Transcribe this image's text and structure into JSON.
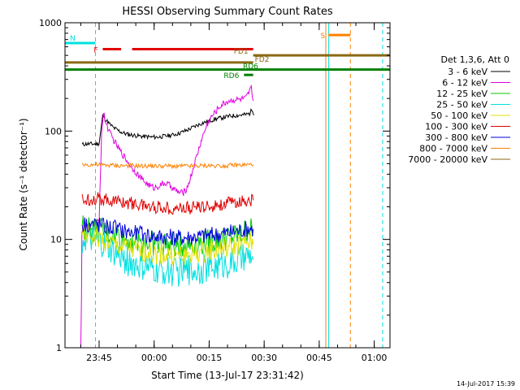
{
  "chart_data": {
    "type": "line",
    "title": "HESSI Observing Summary Count Rates",
    "xlabel": "Start Time (13-Jul-17 23:31:42)",
    "ylabel": "Count Rate (s⁻¹ detector⁻¹)",
    "yscale": "log",
    "ylim": [
      1,
      1000
    ],
    "yticks": [
      {
        "value": 1,
        "label": "1"
      },
      {
        "value": 10,
        "label": "10"
      },
      {
        "value": 100,
        "label": "100"
      },
      {
        "value": 1000,
        "label": "1000"
      }
    ],
    "xlim_minutes": [
      -9.3,
      79.3
    ],
    "xticks": [
      {
        "minute": 0,
        "label": "23:45"
      },
      {
        "minute": 15,
        "label": "00:00"
      },
      {
        "minute": 30,
        "label": "00:15"
      },
      {
        "minute": 45,
        "label": "00:30"
      },
      {
        "minute": 60,
        "label": "00:45"
      },
      {
        "minute": 75,
        "label": "01:00"
      }
    ],
    "legend_title": "Det 1,3,6, Att 0",
    "legend_position": "right",
    "series": [
      {
        "name": "3 - 6 keV",
        "color": "#000000",
        "points": [
          [
            -4.6,
            75
          ],
          [
            -3.8,
            76
          ],
          [
            -3,
            76
          ],
          [
            -2.2,
            76
          ],
          [
            -1.4,
            76
          ],
          [
            -0.6,
            76
          ],
          [
            0,
            77
          ],
          [
            1,
            140
          ],
          [
            2,
            125
          ],
          [
            3,
            115
          ],
          [
            4,
            107
          ],
          [
            5,
            102
          ],
          [
            6,
            98
          ],
          [
            7,
            95
          ],
          [
            8,
            93
          ],
          [
            9,
            92
          ],
          [
            10,
            91
          ],
          [
            11,
            90
          ],
          [
            12,
            89
          ],
          [
            13,
            89
          ],
          [
            14,
            88
          ],
          [
            15,
            88
          ],
          [
            16,
            88
          ],
          [
            17,
            89
          ],
          [
            18,
            90
          ],
          [
            19,
            91
          ],
          [
            20,
            92
          ],
          [
            21,
            94
          ],
          [
            22,
            96
          ],
          [
            23,
            99
          ],
          [
            24,
            102
          ],
          [
            25,
            106
          ],
          [
            26,
            110
          ],
          [
            27,
            114
          ],
          [
            28,
            118
          ],
          [
            29,
            121
          ],
          [
            30,
            124
          ],
          [
            31,
            127
          ],
          [
            32,
            130
          ],
          [
            33,
            132
          ],
          [
            34,
            134
          ],
          [
            35,
            136
          ],
          [
            36,
            138
          ],
          [
            37,
            139
          ],
          [
            38,
            140
          ],
          [
            39,
            141
          ],
          [
            40,
            142
          ],
          [
            41,
            145
          ],
          [
            41.8,
            160
          ],
          [
            42.2,
            140
          ]
        ]
      },
      {
        "name": "6 - 12 keV",
        "color": "#e000e0",
        "points": [
          [
            -5,
            1
          ],
          [
            -4.8,
            3
          ],
          [
            -4.7,
            12
          ],
          [
            -4.5,
            12
          ],
          [
            -4,
            13
          ],
          [
            -3,
            13
          ],
          [
            -2,
            13
          ],
          [
            -1,
            14
          ],
          [
            0,
            15
          ],
          [
            0.7,
            100
          ],
          [
            1.2,
            145
          ],
          [
            2,
            115
          ],
          [
            3,
            95
          ],
          [
            4,
            82
          ],
          [
            5,
            72
          ],
          [
            6,
            64
          ],
          [
            7,
            57
          ],
          [
            8,
            51
          ],
          [
            9,
            46
          ],
          [
            10,
            42
          ],
          [
            11,
            38
          ],
          [
            12,
            35
          ],
          [
            13,
            33
          ],
          [
            14,
            31
          ],
          [
            15,
            30
          ],
          [
            16,
            31
          ],
          [
            17,
            32
          ],
          [
            18,
            33
          ],
          [
            19,
            32
          ],
          [
            20,
            30
          ],
          [
            21,
            28
          ],
          [
            22,
            27
          ],
          [
            23,
            27
          ],
          [
            24,
            30
          ],
          [
            25,
            38
          ],
          [
            26,
            50
          ],
          [
            27,
            65
          ],
          [
            28,
            85
          ],
          [
            29,
            105
          ],
          [
            30,
            125
          ],
          [
            31,
            140
          ],
          [
            32,
            155
          ],
          [
            33,
            170
          ],
          [
            34,
            180
          ],
          [
            35,
            188
          ],
          [
            36,
            192
          ],
          [
            37,
            195
          ],
          [
            38,
            195
          ],
          [
            39,
            198
          ],
          [
            40,
            200
          ],
          [
            41,
            230
          ],
          [
            41.5,
            250
          ],
          [
            42,
            190
          ]
        ]
      },
      {
        "name": "12 - 25 keV",
        "color": "#00cc00",
        "points": [
          [
            -4.6,
            13
          ],
          [
            -3,
            13
          ],
          [
            -1,
            12
          ],
          [
            1,
            12
          ],
          [
            3,
            11
          ],
          [
            5,
            11
          ],
          [
            7,
            10
          ],
          [
            9,
            10
          ],
          [
            11,
            9.5
          ],
          [
            13,
            9.3
          ],
          [
            15,
            9.1
          ],
          [
            17,
            9
          ],
          [
            19,
            8.8
          ],
          [
            21,
            8.7
          ],
          [
            23,
            8.8
          ],
          [
            25,
            9
          ],
          [
            27,
            9.2
          ],
          [
            29,
            9.4
          ],
          [
            31,
            9.7
          ],
          [
            33,
            10
          ],
          [
            35,
            10.3
          ],
          [
            37,
            10.7
          ],
          [
            39,
            11.2
          ],
          [
            41,
            13
          ],
          [
            42,
            11
          ]
        ]
      },
      {
        "name": "25 - 50 keV",
        "color": "#00e0e0",
        "points": [
          [
            -4.6,
            10
          ],
          [
            -3,
            10
          ],
          [
            -1,
            9.5
          ],
          [
            1,
            9
          ],
          [
            3,
            8
          ],
          [
            5,
            7
          ],
          [
            7,
            6.5
          ],
          [
            9,
            6
          ],
          [
            11,
            5.6
          ],
          [
            13,
            5.4
          ],
          [
            15,
            5.2
          ],
          [
            17,
            5.1
          ],
          [
            19,
            5.1
          ],
          [
            21,
            5
          ],
          [
            23,
            5.1
          ],
          [
            25,
            5.2
          ],
          [
            27,
            5.3
          ],
          [
            29,
            5.4
          ],
          [
            31,
            5.6
          ],
          [
            33,
            5.8
          ],
          [
            35,
            6
          ],
          [
            37,
            6.2
          ],
          [
            39,
            6.5
          ],
          [
            41,
            7
          ],
          [
            42,
            6.5
          ]
        ]
      },
      {
        "name": "50 - 100 keV",
        "color": "#e0e000",
        "points": [
          [
            -4.6,
            11
          ],
          [
            -3,
            11
          ],
          [
            -1,
            10.5
          ],
          [
            1,
            10
          ],
          [
            3,
            9.3
          ],
          [
            5,
            8.8
          ],
          [
            7,
            8.4
          ],
          [
            9,
            8.1
          ],
          [
            11,
            7.8
          ],
          [
            13,
            7.6
          ],
          [
            15,
            7.4
          ],
          [
            17,
            7.3
          ],
          [
            19,
            7.2
          ],
          [
            21,
            7.1
          ],
          [
            23,
            7.2
          ],
          [
            25,
            7.3
          ],
          [
            27,
            7.5
          ],
          [
            29,
            7.7
          ],
          [
            31,
            7.9
          ],
          [
            33,
            8.1
          ],
          [
            35,
            8.3
          ],
          [
            37,
            8.6
          ],
          [
            39,
            9
          ],
          [
            41,
            9.5
          ],
          [
            42,
            9
          ]
        ]
      },
      {
        "name": "100 - 300 keV",
        "color": "#e00000",
        "points": [
          [
            -4.6,
            23
          ],
          [
            -3,
            23.5
          ],
          [
            -1,
            24
          ],
          [
            1,
            23.5
          ],
          [
            3,
            23
          ],
          [
            5,
            22.5
          ],
          [
            7,
            22
          ],
          [
            9,
            21.5
          ],
          [
            11,
            21
          ],
          [
            13,
            20.5
          ],
          [
            15,
            20
          ],
          [
            17,
            20
          ],
          [
            19,
            19.5
          ],
          [
            21,
            19.5
          ],
          [
            23,
            19.5
          ],
          [
            25,
            19.5
          ],
          [
            27,
            20
          ],
          [
            29,
            20
          ],
          [
            31,
            20.5
          ],
          [
            33,
            21
          ],
          [
            35,
            21.5
          ],
          [
            37,
            22
          ],
          [
            39,
            22.5
          ],
          [
            41,
            23
          ],
          [
            42,
            23
          ]
        ]
      },
      {
        "name": "300 - 800 keV",
        "color": "#0000e0",
        "points": [
          [
            -4.6,
            14
          ],
          [
            -3,
            14
          ],
          [
            -1,
            14
          ],
          [
            1,
            13.5
          ],
          [
            3,
            13
          ],
          [
            5,
            12.5
          ],
          [
            7,
            12
          ],
          [
            9,
            11.6
          ],
          [
            11,
            11.3
          ],
          [
            13,
            11
          ],
          [
            15,
            10.8
          ],
          [
            17,
            10.6
          ],
          [
            19,
            10.5
          ],
          [
            21,
            10.4
          ],
          [
            23,
            10.4
          ],
          [
            25,
            10.5
          ],
          [
            27,
            10.6
          ],
          [
            29,
            10.8
          ],
          [
            31,
            11
          ],
          [
            33,
            11.2
          ],
          [
            35,
            11.5
          ],
          [
            37,
            11.8
          ],
          [
            39,
            12.2
          ],
          [
            41,
            12.8
          ],
          [
            42,
            12.5
          ]
        ]
      },
      {
        "name": "800 - 7000 keV",
        "color": "#ff8000",
        "points": [
          [
            -4.6,
            49
          ],
          [
            -3,
            49
          ],
          [
            -1,
            49
          ],
          [
            1,
            48.5
          ],
          [
            3,
            48.5
          ],
          [
            5,
            48
          ],
          [
            7,
            48
          ],
          [
            9,
            48
          ],
          [
            11,
            47.5
          ],
          [
            13,
            47.5
          ],
          [
            15,
            47.5
          ],
          [
            17,
            47.5
          ],
          [
            19,
            47.5
          ],
          [
            21,
            47.5
          ],
          [
            23,
            47.5
          ],
          [
            25,
            47.5
          ],
          [
            27,
            47.5
          ],
          [
            29,
            48
          ],
          [
            31,
            48
          ],
          [
            33,
            48
          ],
          [
            35,
            48
          ],
          [
            37,
            48.5
          ],
          [
            39,
            48.5
          ],
          [
            41,
            49
          ],
          [
            42,
            49
          ]
        ]
      },
      {
        "name": "7000 - 20000 keV",
        "color": "#8b6914",
        "points": []
      }
    ],
    "annotations": [
      {
        "label": "N",
        "color": "#00e0e0",
        "y": 650,
        "segments": [
          [
            -9.3,
            -1
          ]
        ]
      },
      {
        "label": "F",
        "color": "#e00000",
        "y": 570,
        "segments": [
          [
            1,
            6
          ],
          [
            9,
            42
          ]
        ]
      },
      {
        "label": "S",
        "color": "#ff8000",
        "y": 770,
        "segments": [
          [
            62.5,
            68.5
          ]
        ]
      },
      {
        "label": "FD1",
        "color": "#8b6914",
        "y": 500,
        "segments": [
          [
            42,
            79.3
          ]
        ]
      },
      {
        "label": "FD2",
        "color": "#8b6914",
        "y": 430,
        "segments": [
          [
            -9.3,
            42
          ]
        ]
      },
      {
        "label": "RD6",
        "color": "#008000",
        "y": 370,
        "segments": [
          [
            -9.3,
            79.3
          ]
        ]
      },
      {
        "label": "RD6",
        "color": "#008000",
        "y": 330,
        "segments": [
          [
            39.5,
            42
          ]
        ]
      }
    ],
    "vertical_lines": [
      {
        "minute": -1,
        "color": "#00e0e0",
        "style": "dashed"
      },
      {
        "minute": 61.8,
        "color": "#ff8000",
        "style": "solid"
      },
      {
        "minute": 62.6,
        "color": "#00e0e0",
        "style": "solid"
      },
      {
        "minute": 68.5,
        "color": "#ff8000",
        "style": "dashed"
      },
      {
        "minute": 77.3,
        "color": "#00e0e0",
        "style": "dashed"
      }
    ]
  },
  "footer": {
    "timestamp": "14-Jul-2017 15:39"
  }
}
